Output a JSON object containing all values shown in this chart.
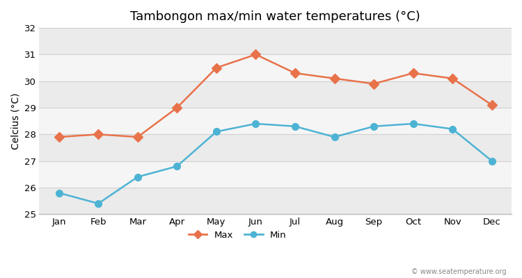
{
  "title": "Tambongon max/min water temperatures (°C)",
  "ylabel": "Celcius (°C)",
  "months": [
    "Jan",
    "Feb",
    "Mar",
    "Apr",
    "May",
    "Jun",
    "Jul",
    "Aug",
    "Sep",
    "Oct",
    "Nov",
    "Dec"
  ],
  "max_values": [
    27.9,
    28.0,
    27.9,
    29.0,
    30.5,
    31.0,
    30.3,
    30.1,
    29.9,
    30.3,
    30.1,
    29.1
  ],
  "min_values": [
    25.8,
    25.4,
    26.4,
    26.8,
    28.1,
    28.4,
    28.3,
    27.9,
    28.3,
    28.4,
    28.2,
    27.0
  ],
  "max_color": "#e8724a",
  "min_color": "#4db3d4",
  "fig_bg_color": "#ffffff",
  "band_colors": [
    "#ebebeb",
    "#f5f5f5"
  ],
  "ylim_min": 25,
  "ylim_max": 32,
  "yticks": [
    25,
    26,
    27,
    28,
    29,
    30,
    31,
    32
  ],
  "watermark": "© www.seatemperature.org",
  "legend_max": "Max",
  "legend_min": "Min",
  "title_fontsize": 13,
  "axis_label_fontsize": 10,
  "tick_fontsize": 9.5,
  "grid_color": "#d0d0d0"
}
